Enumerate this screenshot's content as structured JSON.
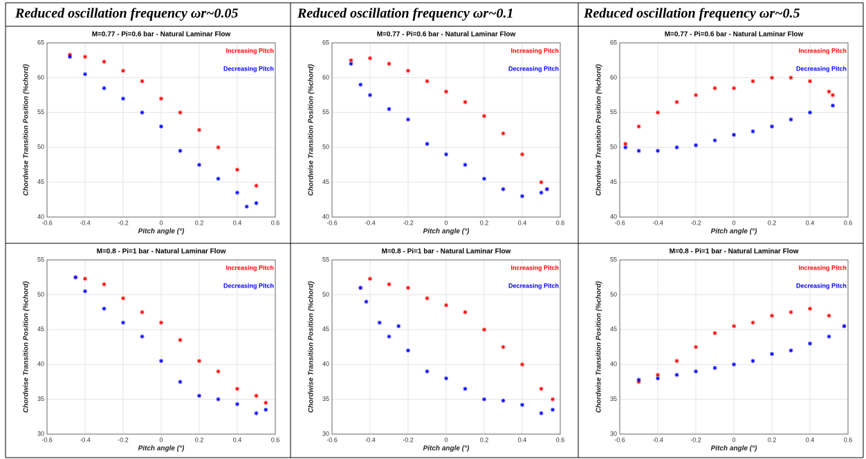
{
  "headers": [
    "Reduced oscillation frequency ωr~0.05",
    "Reduced oscillation frequency ωr~0.1",
    "Reduced oscillation frequency ωr~0.5"
  ],
  "chart_data": [
    {
      "type": "scatter",
      "title": "M=0.77 -  Pi=0.6 bar -  Natural Laminar Flow",
      "xlabel": "Pitch angle (°)",
      "ylabel": "Chordwise Transition Position (%chord)",
      "xlim": [
        -0.6,
        0.6
      ],
      "ylim": [
        40,
        65
      ],
      "xticks": [
        -0.6,
        -0.4,
        -0.2,
        0,
        0.2,
        0.4,
        0.6
      ],
      "yticks": [
        40,
        45,
        50,
        55,
        60,
        65
      ],
      "grid": true,
      "legend": "upper right",
      "series": [
        {
          "name": "Increasing Pitch",
          "color": "#ff0000",
          "x": [
            -0.48,
            -0.4,
            -0.3,
            -0.2,
            -0.1,
            0,
            0.1,
            0.2,
            0.3,
            0.4,
            0.5
          ],
          "values": [
            63.3,
            63,
            62.3,
            61,
            59.5,
            57,
            55,
            52.5,
            50,
            46.8,
            44.5
          ]
        },
        {
          "name": "Decreasing Pitch",
          "color": "#0000ff",
          "x": [
            -0.48,
            -0.4,
            -0.3,
            -0.2,
            -0.1,
            0,
            0.1,
            0.2,
            0.3,
            0.4,
            0.45,
            0.5
          ],
          "values": [
            63,
            60.5,
            58.5,
            57,
            55,
            53,
            49.5,
            47.5,
            45.5,
            43.5,
            41.5,
            42
          ]
        }
      ]
    },
    {
      "type": "scatter",
      "title": "M=0.77 -  Pi=0.6 bar -  Natural Laminar Flow",
      "xlabel": "Pitch angle (°)",
      "ylabel": "Chordwise Transition Position (%chord)",
      "xlim": [
        -0.6,
        0.6
      ],
      "ylim": [
        40,
        65
      ],
      "xticks": [
        -0.6,
        -0.4,
        -0.2,
        0,
        0.2,
        0.4,
        0.6
      ],
      "yticks": [
        40,
        45,
        50,
        55,
        60,
        65
      ],
      "grid": true,
      "legend": "upper right",
      "series": [
        {
          "name": "Increasing Pitch",
          "color": "#ff0000",
          "x": [
            -0.5,
            -0.4,
            -0.3,
            -0.2,
            -0.1,
            0,
            0.1,
            0.2,
            0.3,
            0.4,
            0.5,
            0.53
          ],
          "values": [
            62.5,
            62.8,
            62,
            61,
            59.5,
            58,
            56.5,
            54.5,
            52,
            49,
            45,
            44
          ]
        },
        {
          "name": "Decreasing Pitch",
          "color": "#0000ff",
          "x": [
            -0.5,
            -0.45,
            -0.4,
            -0.3,
            -0.2,
            -0.1,
            0,
            0.1,
            0.2,
            0.3,
            0.4,
            0.5,
            0.53
          ],
          "values": [
            62,
            59,
            57.5,
            55.5,
            54,
            50.5,
            49,
            47.5,
            45.5,
            44,
            43,
            43.5,
            44
          ]
        }
      ]
    },
    {
      "type": "scatter",
      "title": "M=0.77 -  Pi=0.6 bar -  Natural Laminar Flow",
      "xlabel": "Pitch angle (°)",
      "ylabel": "Chordwise Transition Position (%chord)",
      "xlim": [
        -0.6,
        0.6
      ],
      "ylim": [
        40,
        65
      ],
      "xticks": [
        -0.6,
        -0.4,
        -0.2,
        0,
        0.2,
        0.4,
        0.6
      ],
      "yticks": [
        40,
        45,
        50,
        55,
        60,
        65
      ],
      "grid": true,
      "legend": "upper right",
      "series": [
        {
          "name": "Increasing Pitch",
          "color": "#ff0000",
          "x": [
            -0.57,
            -0.5,
            -0.4,
            -0.3,
            -0.2,
            -0.1,
            0,
            0.1,
            0.2,
            0.3,
            0.4,
            0.5,
            0.52
          ],
          "values": [
            50.5,
            53,
            55,
            56.5,
            57.5,
            58.5,
            58.5,
            59.5,
            60,
            60,
            59.5,
            58,
            57.5
          ]
        },
        {
          "name": "Decreasing Pitch",
          "color": "#0000ff",
          "x": [
            -0.57,
            -0.5,
            -0.4,
            -0.3,
            -0.2,
            -0.1,
            0,
            0.1,
            0.2,
            0.3,
            0.4,
            0.52
          ],
          "values": [
            50,
            49.5,
            49.5,
            50,
            50.3,
            51,
            51.8,
            52.3,
            53,
            54,
            55,
            56
          ]
        }
      ]
    },
    {
      "type": "scatter",
      "title": "M=0.8  - Pi=1 bar  -  Natural Laminar Flow",
      "xlabel": "Pitch angle (°)",
      "ylabel": "Chordwise Transition Position (%chord)",
      "xlim": [
        -0.6,
        0.6
      ],
      "ylim": [
        30,
        55
      ],
      "xticks": [
        -0.6,
        -0.4,
        -0.2,
        0,
        0.2,
        0.4,
        0.6
      ],
      "yticks": [
        30,
        35,
        40,
        45,
        50,
        55
      ],
      "grid": true,
      "legend": "upper right",
      "series": [
        {
          "name": "Increasing Pitch",
          "color": "#ff0000",
          "x": [
            -0.45,
            -0.4,
            -0.3,
            -0.2,
            -0.1,
            0,
            0.1,
            0.2,
            0.3,
            0.4,
            0.5,
            0.55
          ],
          "values": [
            52.5,
            52.3,
            51.5,
            49.5,
            47.5,
            46,
            43.5,
            40.5,
            39,
            36.5,
            35.5,
            34.5
          ]
        },
        {
          "name": "Decreasing Pitch",
          "color": "#0000ff",
          "x": [
            -0.45,
            -0.4,
            -0.3,
            -0.2,
            -0.1,
            0,
            0.1,
            0.2,
            0.3,
            0.4,
            0.5,
            0.55
          ],
          "values": [
            52.5,
            50.5,
            48,
            46,
            44,
            40.5,
            37.5,
            35.5,
            35,
            34.3,
            33,
            33.5
          ]
        }
      ]
    },
    {
      "type": "scatter",
      "title": "M=0.8  - Pi=1 bar  -  Natural Laminar Flow",
      "xlabel": "Pitch angle (°)",
      "ylabel": "Chordwise Transition Position (%chord)",
      "xlim": [
        -0.6,
        0.6
      ],
      "ylim": [
        30,
        55
      ],
      "xticks": [
        -0.6,
        -0.4,
        -0.2,
        0,
        0.2,
        0.4,
        0.6
      ],
      "yticks": [
        30,
        35,
        40,
        45,
        50,
        55
      ],
      "grid": true,
      "legend": "upper right",
      "series": [
        {
          "name": "Increasing Pitch",
          "color": "#ff0000",
          "x": [
            -0.45,
            -0.4,
            -0.3,
            -0.2,
            -0.1,
            0,
            0.1,
            0.2,
            0.3,
            0.4,
            0.5,
            0.56
          ],
          "values": [
            51,
            52.3,
            51.5,
            51,
            49.5,
            48.5,
            47.5,
            45,
            42.5,
            40,
            36.5,
            35
          ]
        },
        {
          "name": "Decreasing Pitch",
          "color": "#0000ff",
          "x": [
            -0.45,
            -0.42,
            -0.35,
            -0.3,
            -0.25,
            -0.2,
            -0.1,
            0,
            0.1,
            0.2,
            0.3,
            0.4,
            0.5,
            0.56
          ],
          "values": [
            51,
            49,
            46,
            44,
            45.5,
            42,
            39,
            38,
            36.5,
            35,
            34.8,
            34.2,
            33,
            33.5
          ]
        }
      ]
    },
    {
      "type": "scatter",
      "title": "M=0.8  - Pi=1 bar  -  Natural Laminar Flow",
      "xlabel": "Pitch angle (°)",
      "ylabel": "Chordwise Transition Position (%chord)",
      "xlim": [
        -0.6,
        0.6
      ],
      "ylim": [
        30,
        55
      ],
      "xticks": [
        -0.6,
        -0.4,
        -0.2,
        0,
        0.2,
        0.4,
        0.6
      ],
      "yticks": [
        30,
        35,
        40,
        45,
        50,
        55
      ],
      "grid": true,
      "legend": "upper right",
      "series": [
        {
          "name": "Increasing Pitch",
          "color": "#ff0000",
          "x": [
            -0.5,
            -0.4,
            -0.3,
            -0.2,
            -0.1,
            0,
            0.1,
            0.2,
            0.3,
            0.4,
            0.5,
            0.58
          ],
          "values": [
            37.5,
            38.5,
            40.5,
            42.5,
            44.5,
            45.5,
            46,
            47,
            47.5,
            48,
            47,
            45.5
          ]
        },
        {
          "name": "Decreasing Pitch",
          "color": "#0000ff",
          "x": [
            -0.5,
            -0.4,
            -0.3,
            -0.2,
            -0.1,
            0,
            0.1,
            0.2,
            0.3,
            0.4,
            0.5,
            0.58
          ],
          "values": [
            37.8,
            38,
            38.5,
            39,
            39.5,
            40,
            40.5,
            41.5,
            42,
            43,
            44,
            45.5
          ]
        }
      ]
    }
  ]
}
